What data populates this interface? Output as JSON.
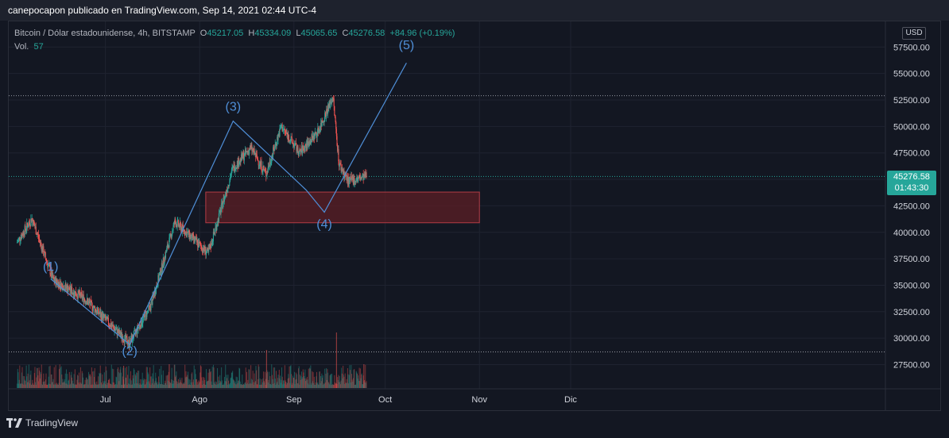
{
  "header": {
    "publisher_line": "canepocapon publicado en TradingView.com, Sep 14, 2021 02:44 UTC-4"
  },
  "legend": {
    "symbol": "Bitcoin / Dólar estadounidense, 4h, BITSTAMP",
    "open_label": "O",
    "open": "45217.05",
    "high_label": "H",
    "high": "45334.09",
    "low_label": "L",
    "low": "45065.65",
    "close_label": "C",
    "close": "45276.58",
    "change": "+84.96 (+0.19%)",
    "volume_label": "Vol.",
    "volume": "57"
  },
  "price_scale": {
    "currency": "USD",
    "last_price": "45276.58",
    "countdown": "01:43:30"
  },
  "footer": {
    "brand": "TradingView"
  },
  "colors": {
    "up": "#26a69a",
    "down": "#ef5350",
    "wave": "#4f8fd8",
    "zone_fill": "#5c1f26",
    "zone_border": "#b23c45"
  },
  "chart_data": {
    "type": "candlestick",
    "y_ticks": [
      "57500.00",
      "55000.00",
      "52500.00",
      "50000.00",
      "47500.00",
      "45000.00",
      "42500.00",
      "40000.00",
      "37500.00",
      "35000.00",
      "32500.00",
      "30000.00",
      "27500.00"
    ],
    "ylim": [
      25000,
      58000
    ],
    "x_ticks": [
      "Jul",
      "Ago",
      "Sep",
      "Oct",
      "Nov",
      "Dic"
    ],
    "x_tick_days": [
      30,
      61,
      92,
      122,
      153,
      183
    ],
    "xlim_days": [
      -1,
      225
    ],
    "key_points": [
      {
        "day": 1,
        "price": 39000
      },
      {
        "day": 6,
        "price": 41300
      },
      {
        "day": 13,
        "price": 35500
      },
      {
        "day": 23,
        "price": 33800
      },
      {
        "day": 38,
        "price": 29500
      },
      {
        "day": 45,
        "price": 33000
      },
      {
        "day": 53,
        "price": 41000
      },
      {
        "day": 64,
        "price": 38000
      },
      {
        "day": 72,
        "price": 46000
      },
      {
        "day": 78,
        "price": 48000
      },
      {
        "day": 83,
        "price": 45500
      },
      {
        "day": 88,
        "price": 50000
      },
      {
        "day": 94,
        "price": 47500
      },
      {
        "day": 100,
        "price": 49500
      },
      {
        "day": 105,
        "price": 52800
      },
      {
        "day": 107,
        "price": 46500
      },
      {
        "day": 110,
        "price": 44800
      },
      {
        "day": 116,
        "price": 45276
      }
    ],
    "wave_path": [
      {
        "day": 12,
        "price": 35600
      },
      {
        "day": 38,
        "price": 29400
      },
      {
        "day": 72,
        "price": 50500
      },
      {
        "day": 96,
        "price": 44000
      },
      {
        "day": 102,
        "price": 41900
      },
      {
        "day": 129,
        "price": 56000
      }
    ],
    "wave_labels": [
      {
        "text": "(1)",
        "day": 12,
        "price": 36400
      },
      {
        "text": "(2)",
        "day": 38,
        "price": 28400
      },
      {
        "text": "(3)",
        "day": 72,
        "price": 51500
      },
      {
        "text": "(4)",
        "day": 102,
        "price": 40400
      },
      {
        "text": "(5)",
        "day": 129,
        "price": 57300
      }
    ],
    "support_zone": {
      "day_start": 63,
      "day_end": 153,
      "price_top": 43800,
      "price_bottom": 40900
    },
    "hlines": [
      52900,
      45276.58,
      28700
    ]
  }
}
